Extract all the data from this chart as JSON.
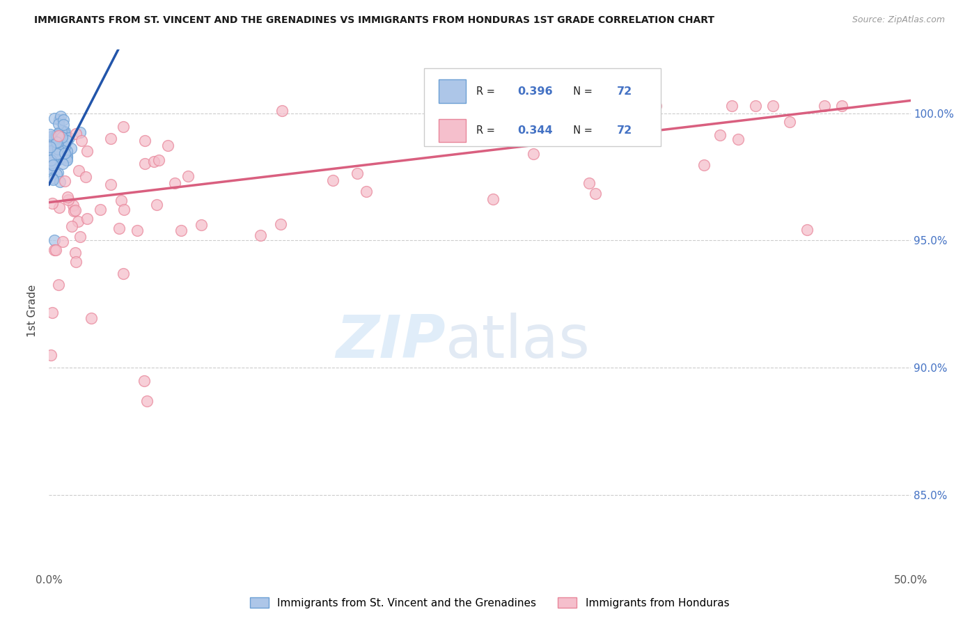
{
  "title": "IMMIGRANTS FROM ST. VINCENT AND THE GRENADINES VS IMMIGRANTS FROM HONDURAS 1ST GRADE CORRELATION CHART",
  "source": "Source: ZipAtlas.com",
  "ylabel": "1st Grade",
  "xlim": [
    0.0,
    0.5
  ],
  "ylim": [
    0.82,
    1.025
  ],
  "ytick_vals": [
    0.85,
    0.9,
    0.95,
    1.0
  ],
  "ytick_labels": [
    "85.0%",
    "90.0%",
    "95.0%",
    "100.0%"
  ],
  "blue_R": 0.396,
  "blue_N": 72,
  "pink_R": 0.344,
  "pink_N": 72,
  "blue_color": "#adc6e8",
  "blue_edge": "#6b9fd4",
  "pink_color": "#f5bfcc",
  "pink_edge": "#e8869a",
  "blue_line_color": "#2255aa",
  "pink_line_color": "#d95f7f",
  "legend_blue_label": "Immigrants from St. Vincent and the Grenadines",
  "legend_pink_label": "Immigrants from Honduras",
  "blue_line_x0": 0.0,
  "blue_line_y0": 0.972,
  "blue_line_x1": 0.025,
  "blue_line_y1": 1.005,
  "pink_line_x0": 0.0,
  "pink_line_x1": 0.5,
  "pink_line_y0": 0.965,
  "pink_line_y1": 1.005
}
